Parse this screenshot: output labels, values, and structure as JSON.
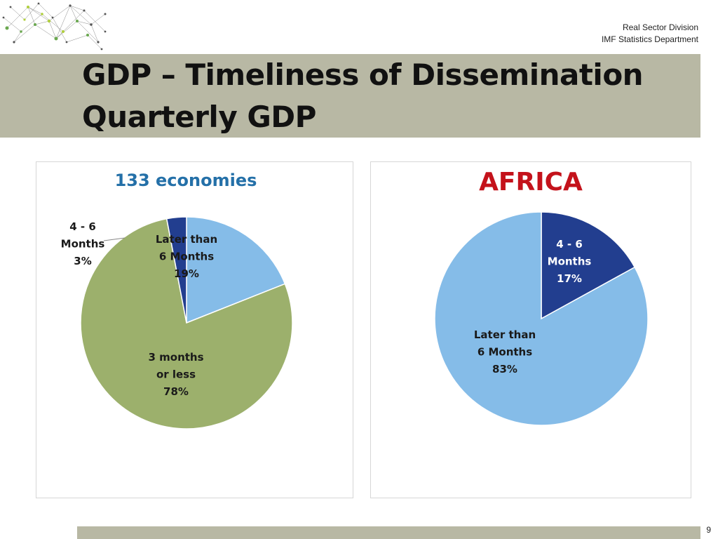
{
  "header": {
    "division": "Real Sector Division",
    "department": "IMF Statistics Department"
  },
  "title": {
    "line1": "GDP – Timeliness of Dissemination",
    "line2": "Quarterly GDP"
  },
  "page_number": "9",
  "chart_data": [
    {
      "type": "pie",
      "title": "133 economies",
      "title_color": "#2470a8",
      "slices": [
        {
          "label_lines": [
            "Later than",
            "6 Months"
          ],
          "pct_label": "19%",
          "value": 19,
          "color": "#85bce8"
        },
        {
          "label_lines": [
            "3 months",
            "or less"
          ],
          "pct_label": "78%",
          "value": 78,
          "color": "#9cb06c"
        },
        {
          "label_lines": [
            "4 - 6",
            "Months"
          ],
          "pct_label": "3%",
          "value": 3,
          "color": "#223e8f"
        }
      ]
    },
    {
      "type": "pie",
      "title": "AFRICA",
      "title_color": "#c4121b",
      "slices": [
        {
          "label_lines": [
            "4 - 6",
            "Months"
          ],
          "pct_label": "17%",
          "value": 17,
          "color": "#223e8f"
        },
        {
          "label_lines": [
            "Later than",
            "6 Months"
          ],
          "pct_label": "83%",
          "value": 83,
          "color": "#85bce8"
        }
      ]
    }
  ]
}
